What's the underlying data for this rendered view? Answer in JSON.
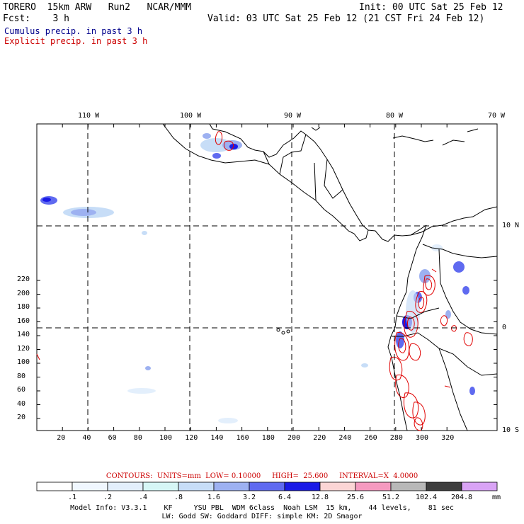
{
  "header": {
    "model": "TORERO  15km ARW   Run2   NCAR/MMM",
    "init": "Init: 00 UTC Sat 25 Feb 12",
    "fcst": "Fcst:    3 h",
    "valid": "Valid: 03 UTC Sat 25 Feb 12 (21 CST Fri 24 Feb 12)",
    "cumulus_label": "Cumulus precip. in past 3 h",
    "explicit_label": "Explicit precip. in past 3 h"
  },
  "colors": {
    "cumulus": "#00008b",
    "explicit": "#cc0000",
    "contour": "#e00000"
  },
  "map": {
    "lon_labels": [
      "110 W",
      "100 W",
      "90 W",
      "80 W",
      "70 W"
    ],
    "lat_labels": [
      "10 N",
      "0",
      "10 S"
    ],
    "x_ticks": [
      "20",
      "40",
      "60",
      "80",
      "100",
      "120",
      "140",
      "160",
      "180",
      "200",
      "220",
      "240",
      "260",
      "280",
      "300",
      "320"
    ],
    "y_ticks": [
      "220",
      "200",
      "180",
      "160",
      "140",
      "120",
      "100",
      "80",
      "60",
      "40",
      "20"
    ]
  },
  "contour_info": "CONTOURS:  UNITS=mm  LOW= 0.10000     HIGH=  25.600     INTERVAL=X  4.0000",
  "colorbar": {
    "colors": [
      "#ffffff",
      "#f0f7ff",
      "#e3effc",
      "#d6f6f6",
      "#c7ddf7",
      "#9db1f1",
      "#5f6af0",
      "#1a1ae6",
      "#fbd5d5",
      "#f59ac0",
      "#b8b8b8",
      "#3d3d3d",
      "#d9a3f5"
    ],
    "labels": [
      ".1",
      ".2",
      ".4",
      ".8",
      "1.6",
      "3.2",
      "6.4",
      "12.8",
      "25.6",
      "51.2",
      "102.4",
      "204.8"
    ],
    "unit": "mm"
  },
  "footer": {
    "line1": "Model Info: V3.3.1    KF     YSU PBL  WDM 6class  Noah LSM  15 km,    44 levels,    81 sec",
    "line2": "LW: Godd SW: Goddard DIFF: simple KM: 2D Smagor"
  }
}
